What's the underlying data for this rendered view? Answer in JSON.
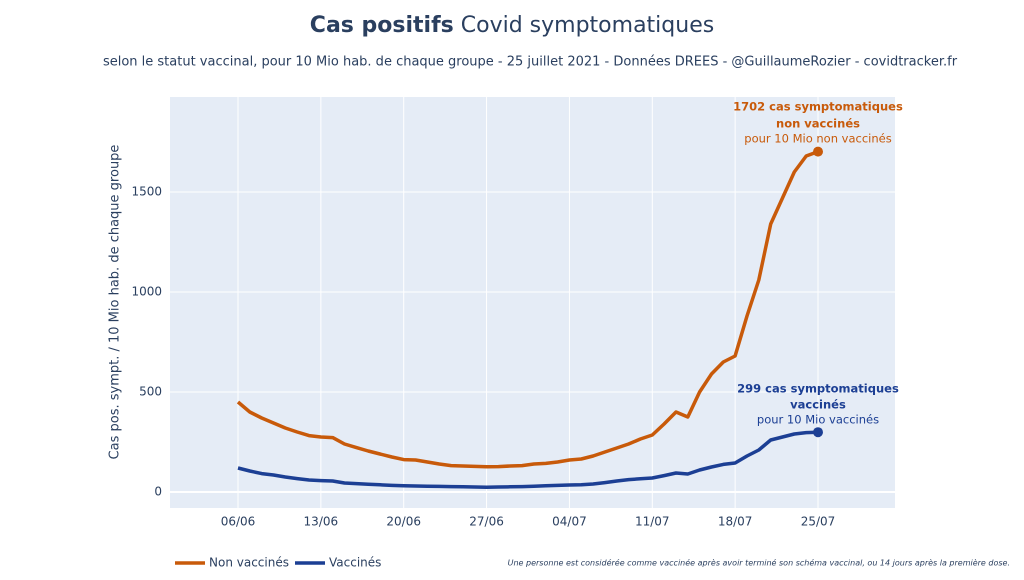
{
  "chart_data": {
    "type": "line",
    "title": {
      "bold": "Cas positifs",
      "regular": "Covid symptomatiques"
    },
    "subtitle": "selon le statut vaccinal, pour 10 Mio hab. de chaque groupe - 25 juillet 2021 - Données DREES - @GuillaumeRozier - covidtracker.fr",
    "y_label": "Cas pos. sympt. / 10 Mio hab. de chaque groupe",
    "categories": [
      "06/06",
      null,
      null,
      null,
      null,
      null,
      null,
      "13/06",
      null,
      null,
      null,
      null,
      null,
      null,
      "20/06",
      null,
      null,
      null,
      null,
      null,
      null,
      "27/06",
      null,
      null,
      null,
      null,
      null,
      null,
      "04/07",
      null,
      null,
      null,
      null,
      null,
      null,
      "11/07",
      null,
      null,
      null,
      null,
      null,
      null,
      "18/07",
      null,
      null,
      null,
      null,
      null,
      null,
      "25/07"
    ],
    "series": [
      {
        "name": "Non vaccinés",
        "color": "#c85a0a",
        "values": [
          450,
          400,
          370,
          345,
          320,
          300,
          282,
          275,
          272,
          240,
          222,
          205,
          190,
          175,
          162,
          160,
          150,
          140,
          132,
          130,
          128,
          126,
          127,
          130,
          132,
          140,
          143,
          150,
          160,
          165,
          180,
          200,
          220,
          240,
          265,
          285,
          340,
          400,
          375,
          500,
          590,
          650,
          680,
          880,
          1060,
          1340,
          1470,
          1600,
          1680,
          1702
        ],
        "annotation": [
          "1702 cas symptomatiques",
          "non vaccinés",
          "pour 10 Mio non vaccinés"
        ]
      },
      {
        "name": "Vaccinés",
        "color": "#1c3f94",
        "values": [
          120,
          105,
          92,
          85,
          75,
          67,
          60,
          57,
          55,
          45,
          42,
          39,
          36,
          33,
          31,
          30,
          29,
          28,
          27,
          26,
          25,
          24,
          25,
          26,
          27,
          29,
          31,
          33,
          35,
          36,
          40,
          47,
          55,
          62,
          66,
          70,
          82,
          95,
          90,
          110,
          125,
          138,
          145,
          180,
          210,
          260,
          275,
          290,
          297,
          299
        ],
        "annotation": [
          "299 cas symptomatiques",
          "vaccinés",
          "pour 10 Mio vaccinés"
        ]
      }
    ],
    "ylim": [
      -80,
      1975
    ],
    "yticks": [
      0,
      500,
      1000,
      1500
    ],
    "grid": true,
    "legend": "bottom",
    "footnote": "Une personne est considérée comme vaccinée après avoir terminé son schéma vaccinal, ou 14 jours après la première dose."
  }
}
